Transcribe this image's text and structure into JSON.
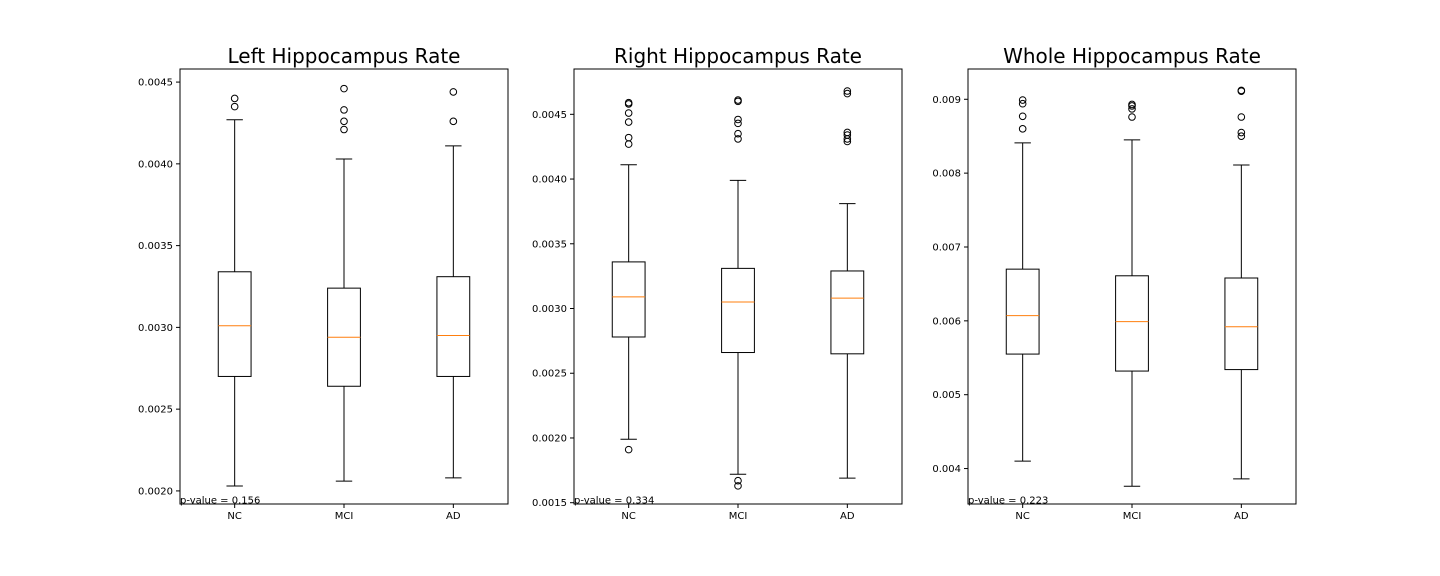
{
  "chart_data": [
    {
      "type": "box",
      "title": "Left Hippocampus Rate",
      "categories": [
        "NC",
        "MCI",
        "AD"
      ],
      "ylim": [
        0.00192,
        0.00458
      ],
      "yticks": [
        0.002,
        0.0025,
        0.003,
        0.0035,
        0.004,
        0.0045
      ],
      "ytick_labels": [
        "0.0020",
        "0.0025",
        "0.0030",
        "0.0035",
        "0.0040",
        "0.0045"
      ],
      "boxes": [
        {
          "whisker_low": 0.00203,
          "q1": 0.0027,
          "median": 0.00301,
          "q3": 0.00334,
          "whisker_high": 0.00427,
          "outliers": [
            0.00435,
            0.0044
          ]
        },
        {
          "whisker_low": 0.00206,
          "q1": 0.00264,
          "median": 0.00294,
          "q3": 0.00324,
          "whisker_high": 0.00403,
          "outliers": [
            0.00421,
            0.00426,
            0.00433,
            0.00446
          ]
        },
        {
          "whisker_low": 0.00208,
          "q1": 0.0027,
          "median": 0.00295,
          "q3": 0.00331,
          "whisker_high": 0.00411,
          "outliers": [
            0.00426,
            0.00444
          ]
        }
      ],
      "annotation": "p-value = 0.156"
    },
    {
      "type": "box",
      "title": "Right Hippocampus Rate",
      "categories": [
        "NC",
        "MCI",
        "AD"
      ],
      "ylim": [
        0.00149,
        0.00485
      ],
      "yticks": [
        0.0015,
        0.002,
        0.0025,
        0.003,
        0.0035,
        0.004,
        0.0045
      ],
      "ytick_labels": [
        "0.0015",
        "0.0020",
        "0.0025",
        "0.0030",
        "0.0035",
        "0.0040",
        "0.0045"
      ],
      "boxes": [
        {
          "whisker_low": 0.00199,
          "q1": 0.00278,
          "median": 0.00309,
          "q3": 0.00336,
          "whisker_high": 0.00411,
          "outliers": [
            0.00191,
            0.00427,
            0.00432,
            0.00444,
            0.00451,
            0.00458,
            0.00459
          ]
        },
        {
          "whisker_low": 0.00172,
          "q1": 0.00266,
          "median": 0.00305,
          "q3": 0.00331,
          "whisker_high": 0.00399,
          "outliers": [
            0.00163,
            0.00167,
            0.00431,
            0.00435,
            0.00443,
            0.00446,
            0.0046,
            0.00461
          ]
        },
        {
          "whisker_low": 0.00169,
          "q1": 0.00265,
          "median": 0.00308,
          "q3": 0.00329,
          "whisker_high": 0.00381,
          "outliers": [
            0.00429,
            0.00431,
            0.00434,
            0.00436,
            0.00466,
            0.00468
          ]
        }
      ],
      "annotation": "p-value = 0.334"
    },
    {
      "type": "box",
      "title": "Whole Hippocampus Rate",
      "categories": [
        "NC",
        "MCI",
        "AD"
      ],
      "ylim": [
        0.00352,
        0.00941
      ],
      "yticks": [
        0.004,
        0.005,
        0.006,
        0.007,
        0.008,
        0.009
      ],
      "ytick_labels": [
        "0.004",
        "0.005",
        "0.006",
        "0.007",
        "0.008",
        "0.009"
      ],
      "boxes": [
        {
          "whisker_low": 0.0041,
          "q1": 0.00555,
          "median": 0.00607,
          "q3": 0.0067,
          "whisker_high": 0.00841,
          "outliers": [
            0.0086,
            0.00877,
            0.00894,
            0.00899
          ]
        },
        {
          "whisker_low": 0.00376,
          "q1": 0.00532,
          "median": 0.00599,
          "q3": 0.00661,
          "whisker_high": 0.00845,
          "outliers": [
            0.00876,
            0.00887,
            0.00891,
            0.00893
          ]
        },
        {
          "whisker_low": 0.00386,
          "q1": 0.00534,
          "median": 0.00592,
          "q3": 0.00658,
          "whisker_high": 0.00811,
          "outliers": [
            0.0085,
            0.00855,
            0.00876,
            0.00911,
            0.00912
          ]
        }
      ],
      "annotation": "p-value = 0.223"
    }
  ],
  "colors": {
    "median": "#ff7f0e",
    "box": "#000000",
    "background": "#ffffff"
  }
}
